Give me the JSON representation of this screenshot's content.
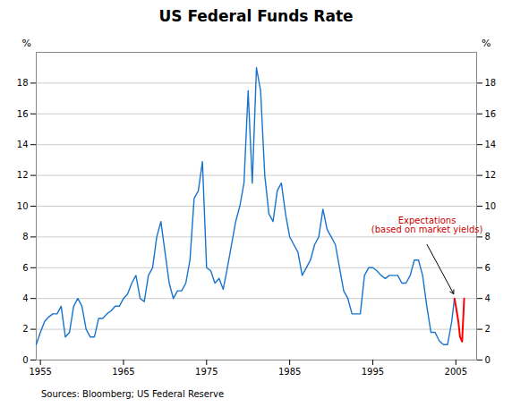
{
  "chart_data": {
    "type": "line",
    "title": "US Federal Funds Rate",
    "source": "Sources: Bloomberg; US Federal Reserve",
    "ylabel": "%",
    "y2label": "%",
    "annotation": {
      "text": "Expectations\n(based on market yields)",
      "color": "#CC0000"
    },
    "series": [
      {
        "color": "#1874CD",
        "x": [
          1954.5,
          1955.0,
          1955.5,
          1956.0,
          1956.5,
          1957.0,
          1957.5,
          1958.0,
          1958.5,
          1959.0,
          1959.5,
          1960.0,
          1960.5,
          1961.0,
          1961.5,
          1962.0,
          1962.5,
          1963.0,
          1963.5,
          1964.0,
          1964.5,
          1965.0,
          1965.5,
          1966.0,
          1966.5,
          1967.0,
          1967.5,
          1968.0,
          1968.5,
          1969.0,
          1969.5,
          1970.0,
          1970.5,
          1971.0,
          1971.5,
          1972.0,
          1972.5,
          1973.0,
          1973.5,
          1974.0,
          1974.5,
          1975.0,
          1975.5,
          1976.0,
          1976.5,
          1977.0,
          1977.5,
          1978.0,
          1978.5,
          1979.0,
          1979.5,
          1980.0,
          1980.5,
          1981.0,
          1981.5,
          1982.0,
          1982.5,
          1983.0,
          1983.5,
          1984.0,
          1984.5,
          1985.0,
          1985.5,
          1986.0,
          1986.5,
          1987.0,
          1987.5,
          1988.0,
          1988.5,
          1989.0,
          1989.5,
          1990.0,
          1990.5,
          1991.0,
          1991.5,
          1992.0,
          1992.5,
          1993.0,
          1993.5,
          1994.0,
          1994.5,
          1995.0,
          1995.5,
          1996.0,
          1996.5,
          1997.0,
          1997.5,
          1998.0,
          1998.5,
          1999.0,
          1999.5,
          2000.0,
          2000.5,
          2001.0,
          2001.5,
          2002.0,
          2002.5,
          2003.0,
          2003.5,
          2004.0,
          2004.5,
          2004.83
        ],
        "values": [
          1.0,
          1.8,
          2.5,
          2.8,
          3.0,
          3.0,
          3.5,
          1.5,
          1.8,
          3.5,
          4.0,
          3.5,
          2.0,
          1.5,
          1.5,
          2.7,
          2.7,
          3.0,
          3.2,
          3.5,
          3.5,
          4.0,
          4.3,
          5.0,
          5.5,
          4.0,
          3.8,
          5.5,
          6.0,
          8.0,
          9.0,
          7.0,
          5.0,
          4.0,
          4.5,
          4.5,
          5.0,
          6.5,
          10.5,
          11.0,
          12.9,
          6.0,
          5.8,
          5.0,
          5.3,
          4.6,
          6.0,
          7.5,
          9.0,
          10.0,
          11.5,
          17.5,
          11.5,
          19.0,
          17.5,
          12.0,
          9.5,
          9.0,
          11.0,
          11.5,
          9.5,
          8.0,
          7.5,
          7.0,
          5.5,
          6.0,
          6.5,
          7.5,
          8.0,
          9.8,
          8.5,
          8.0,
          7.5,
          6.0,
          4.5,
          4.0,
          3.0,
          3.0,
          3.0,
          5.5,
          6.0,
          6.0,
          5.8,
          5.5,
          5.3,
          5.5,
          5.5,
          5.5,
          5.0,
          5.0,
          5.5,
          6.5,
          6.5,
          5.5,
          3.5,
          1.8,
          1.8,
          1.25,
          1.0,
          1.0,
          2.5,
          4.0
        ]
      },
      {
        "color": "#FF0000",
        "x": [
          2004.83,
          2005.0,
          2005.3,
          2005.5,
          2005.75,
          2006.0
        ],
        "values": [
          4.0,
          3.5,
          2.5,
          1.5,
          1.2,
          4.0
        ]
      }
    ],
    "xlim": [
      1954.5,
      2007.5
    ],
    "xticks": [
      1955,
      1965,
      1975,
      1985,
      1995,
      2005
    ],
    "ylim": [
      0,
      20
    ],
    "yticks": [
      0,
      2,
      4,
      6,
      8,
      10,
      12,
      14,
      16,
      18
    ],
    "y2lim": [
      0,
      20
    ],
    "y2ticks": [
      0,
      2,
      4,
      6,
      8,
      10,
      12,
      14,
      16,
      18
    ],
    "grid": true
  }
}
